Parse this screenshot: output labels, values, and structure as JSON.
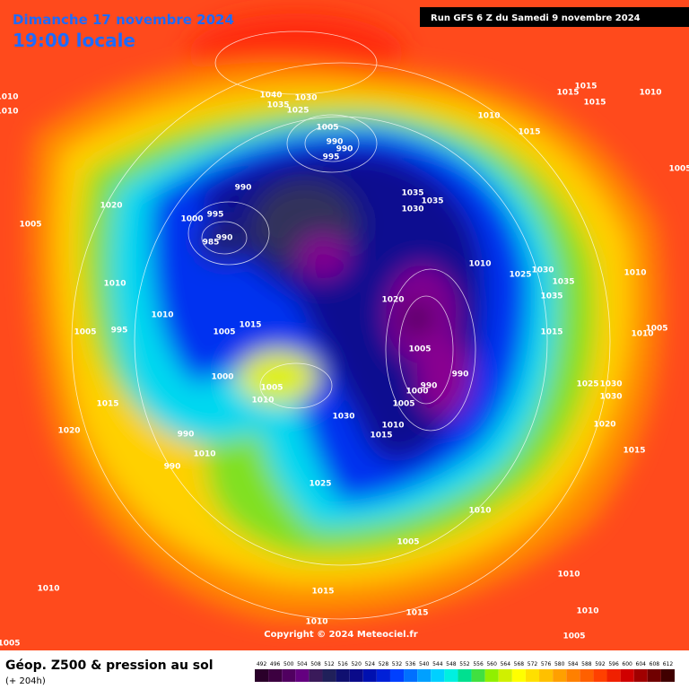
{
  "header": {
    "date": "Dimanche 17 novembre 2024",
    "time": "19:00 locale",
    "run": "Run GFS 6 Z du Samedi 9 novembre 2024"
  },
  "copyright": "Copyright © 2024 Meteociel.fr",
  "footer": {
    "title": "Géop. Z500 & pression au sol",
    "lead": "(+ 204h)"
  },
  "legend": {
    "values": [
      492,
      496,
      500,
      504,
      508,
      512,
      516,
      520,
      524,
      528,
      532,
      536,
      540,
      544,
      548,
      552,
      556,
      560,
      564,
      568,
      572,
      576,
      580,
      584,
      588,
      592,
      596,
      600,
      604,
      608,
      612
    ],
    "colors": [
      "#2a002a",
      "#3c0040",
      "#500060",
      "#640080",
      "#3a1a5a",
      "#20205a",
      "#101070",
      "#0a0a8a",
      "#0010b0",
      "#0020d8",
      "#0040ff",
      "#0070ff",
      "#00a0ff",
      "#00d0ff",
      "#00f0e0",
      "#00e090",
      "#40e040",
      "#90f000",
      "#d0f000",
      "#ffff00",
      "#ffe000",
      "#ffc000",
      "#ffa000",
      "#ff8000",
      "#ff6000",
      "#ff4000",
      "#f02000",
      "#d00000",
      "#a00000",
      "#700000",
      "#400000"
    ]
  },
  "isobar_labels": [
    1010,
    1010,
    1005,
    1020,
    1010,
    1005,
    995,
    1010,
    1015,
    1020,
    990,
    990,
    1010,
    1040,
    1030,
    1035,
    1025,
    1005,
    990,
    990,
    995,
    990,
    995,
    1000,
    990,
    985,
    1005,
    1015,
    1000,
    1010,
    1015,
    1035,
    1035,
    1030,
    1010,
    1025,
    1030,
    1035,
    1035,
    1015,
    1020,
    1005,
    990,
    990,
    1000,
    1005,
    1010,
    1015,
    1030,
    1025,
    1010,
    1005,
    1015,
    1015,
    1010,
    1010,
    1010,
    1005,
    1010,
    1005,
    1015,
    1015,
    1015,
    1010,
    1005,
    1010,
    1010,
    1005,
    1025,
    1030,
    1030,
    1020,
    1015,
    1010,
    1005
  ]
}
